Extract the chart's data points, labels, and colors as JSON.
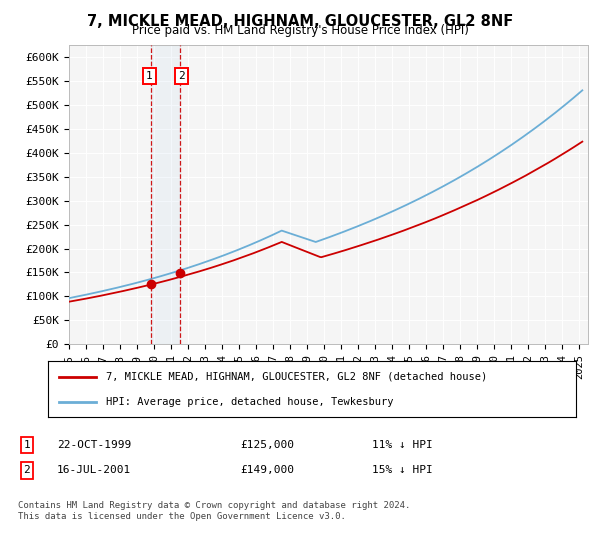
{
  "title": "7, MICKLE MEAD, HIGHNAM, GLOUCESTER, GL2 8NF",
  "subtitle": "Price paid vs. HM Land Registry's House Price Index (HPI)",
  "ylim": [
    0,
    625000
  ],
  "yticks": [
    0,
    50000,
    100000,
    150000,
    200000,
    250000,
    300000,
    350000,
    400000,
    450000,
    500000,
    550000,
    600000
  ],
  "xlim_start": 1995.0,
  "xlim_end": 2025.5,
  "sale1_x": 1999.81,
  "sale1_y": 125000,
  "sale2_x": 2001.54,
  "sale2_y": 149000,
  "sale1_label": "22-OCT-1999",
  "sale1_price": "£125,000",
  "sale1_note": "11% ↓ HPI",
  "sale2_label": "16-JUL-2001",
  "sale2_price": "£149,000",
  "sale2_note": "15% ↓ HPI",
  "legend1": "7, MICKLE MEAD, HIGHNAM, GLOUCESTER, GL2 8NF (detached house)",
  "legend2": "HPI: Average price, detached house, Tewkesbury",
  "footer": "Contains HM Land Registry data © Crown copyright and database right 2024.\nThis data is licensed under the Open Government Licence v3.0.",
  "hpi_color": "#6baed6",
  "price_color": "#cc0000",
  "vline_color": "#cc0000",
  "shade_color": "#c6dbef",
  "background_chart": "#f5f5f5"
}
